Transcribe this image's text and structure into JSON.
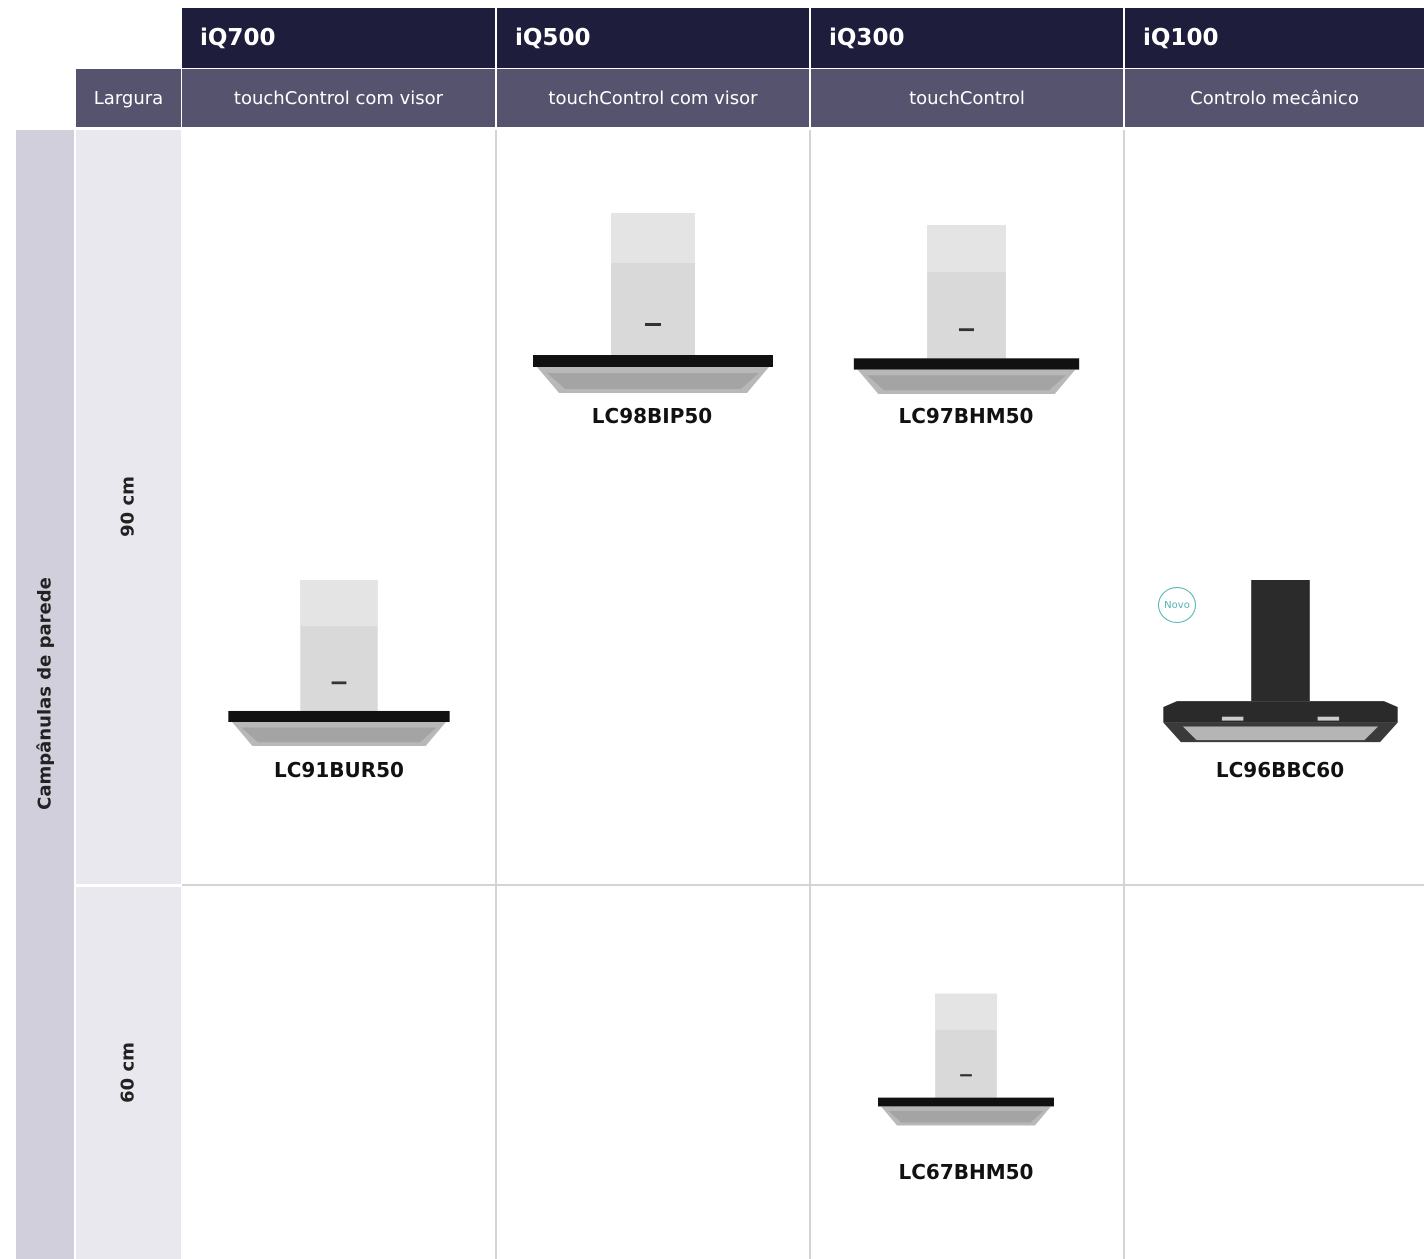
{
  "header": {
    "series": [
      "iQ700",
      "iQ500",
      "iQ300",
      "iQ100"
    ],
    "controls": [
      "touchControl com visor",
      "touchControl com visor",
      "touchControl",
      "Controlo mecânico"
    ],
    "width_label": "Largura"
  },
  "category": "Campânulas de parede",
  "rows": [
    {
      "width": "90 cm",
      "products": [
        "LC91BUR50",
        "LC98BIP50",
        "LC97BHM50",
        "LC96BBC60"
      ]
    },
    {
      "width": "60 cm",
      "products": [
        "LC67BHM50"
      ]
    }
  ],
  "badge": "Novo"
}
